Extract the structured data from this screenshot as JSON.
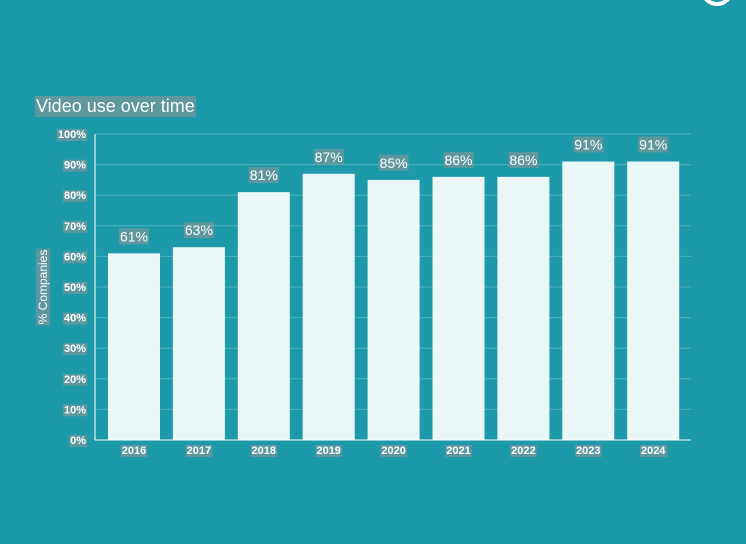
{
  "chart_data": {
    "type": "bar",
    "title": "Video use over time",
    "xlabel": "",
    "ylabel": "% Companies",
    "categories": [
      "2016",
      "2017",
      "2018",
      "2019",
      "2020",
      "2021",
      "2022",
      "2023",
      "2024"
    ],
    "values": [
      61,
      63,
      81,
      87,
      85,
      86,
      86,
      91,
      91
    ],
    "value_labels": [
      "61%",
      "63%",
      "81%",
      "87%",
      "85%",
      "86%",
      "86%",
      "91%",
      "91%"
    ],
    "ylim": [
      0,
      100
    ],
    "yticks": [
      0,
      10,
      20,
      30,
      40,
      50,
      60,
      70,
      80,
      90,
      100
    ],
    "ytick_labels": [
      "0%",
      "10%",
      "20%",
      "30%",
      "40%",
      "50%",
      "60%",
      "70%",
      "80%",
      "90%",
      "100%"
    ],
    "grid": true,
    "legend": "none"
  },
  "colors": {
    "background": "#1c9aa9",
    "bar": "#ebf7f7",
    "grid": "#4fb3bf",
    "axis": "#ffffff",
    "text": "#ffffff"
  }
}
